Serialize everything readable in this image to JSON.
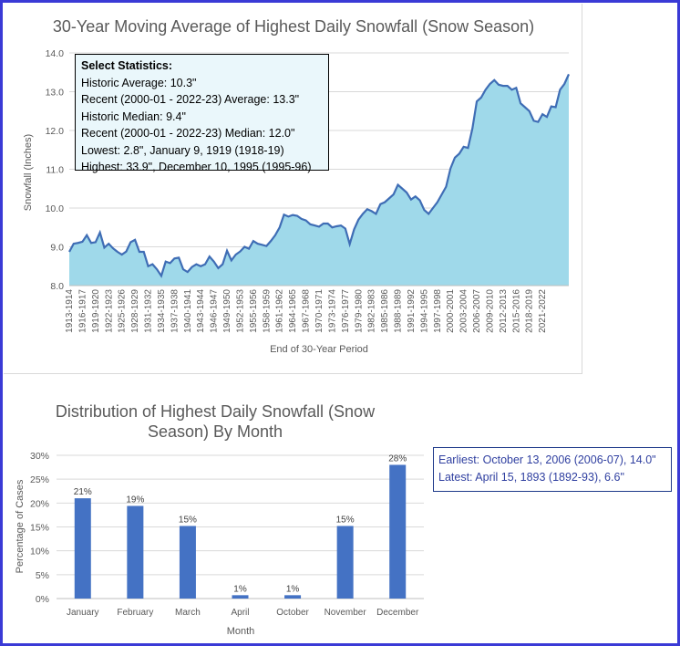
{
  "stats": {
    "header": "Select Statistics:",
    "lines": [
      "Historic Average: 10.3\"",
      "Recent (2000-01 - 2022-23) Average: 13.3\"",
      "Historic Median: 9.4\"",
      "Recent (2000-01 - 2022-23) Median: 12.0\"",
      "Lowest: 2.8\", January 9, 1919 (1918-19)",
      "Highest: 33.9\", December 10, 1995 (1995-96)"
    ]
  },
  "extremes": {
    "earliest": "Earliest: October 13, 2006 (2006-07), 14.0\"",
    "latest": "Latest: April 15, 1893 (1892-93), 6.6\""
  },
  "colors": {
    "area_fill": "#9fd9ea",
    "line": "#3f6db5",
    "bar": "#4472c4",
    "grid": "#d9d9d9",
    "frame": "#3a3ad6"
  },
  "chart_data": [
    {
      "type": "area",
      "title": "30-Year Moving Average of Highest Daily Snowfall (Snow Season)",
      "xlabel": "End of 30-Year Period",
      "ylabel": "Snowfall (Inches)",
      "ylim": [
        8.0,
        14.0
      ],
      "yticks": [
        "8.0",
        "9.0",
        "10.0",
        "11.0",
        "12.0",
        "13.0",
        "14.0"
      ],
      "grid": true,
      "xtick_labels": [
        "1913-1914",
        "1916-1917",
        "1919-1920",
        "1922-1923",
        "1925-1926",
        "1928-1929",
        "1931-1932",
        "1934-1935",
        "1937-1938",
        "1940-1941",
        "1943-1944",
        "1946-1947",
        "1949-1950",
        "1952-1953",
        "1955-1956",
        "1958-1959",
        "1961-1962",
        "1964-1965",
        "1967-1968",
        "1970-1971",
        "1973-1974",
        "1976-1977",
        "1979-1980",
        "1982-1983",
        "1985-1986",
        "1988-1989",
        "1991-1992",
        "1994-1995",
        "1997-1998",
        "2000-2001",
        "2003-2004",
        "2006-2007",
        "2009-2010",
        "2012-2013",
        "2015-2016",
        "2018-2019",
        "2021-2022"
      ],
      "x_start": "1913-1914",
      "x_end": "2022-2023",
      "values": [
        8.87,
        9.08,
        9.1,
        9.13,
        9.3,
        9.1,
        9.12,
        9.37,
        8.98,
        9.08,
        8.96,
        8.87,
        8.8,
        8.88,
        9.12,
        9.18,
        8.87,
        8.87,
        8.5,
        8.55,
        8.42,
        8.25,
        8.62,
        8.58,
        8.7,
        8.72,
        8.42,
        8.35,
        8.48,
        8.55,
        8.5,
        8.55,
        8.75,
        8.62,
        8.45,
        8.55,
        8.9,
        8.65,
        8.8,
        8.88,
        9.0,
        8.95,
        9.15,
        9.08,
        9.05,
        9.02,
        9.15,
        9.3,
        9.5,
        9.83,
        9.78,
        9.82,
        9.8,
        9.72,
        9.68,
        9.58,
        9.55,
        9.52,
        9.6,
        9.6,
        9.5,
        9.53,
        9.55,
        9.47,
        9.07,
        9.45,
        9.7,
        9.85,
        9.97,
        9.92,
        9.85,
        10.1,
        10.15,
        10.25,
        10.35,
        10.6,
        10.5,
        10.4,
        10.22,
        10.3,
        10.2,
        9.95,
        9.85,
        10.0,
        10.15,
        10.35,
        10.55,
        11.02,
        11.3,
        11.4,
        11.58,
        11.55,
        12.05,
        12.75,
        12.85,
        13.05,
        13.2,
        13.3,
        13.18,
        13.15,
        13.15,
        13.05,
        13.1,
        12.7,
        12.6,
        12.5,
        12.25,
        12.22,
        12.42,
        12.35,
        12.62,
        12.6,
        13.05,
        13.2,
        13.45
      ]
    },
    {
      "type": "bar",
      "title": "Distribution of Highest Daily Snowfall (Snow Season) By Month",
      "title_lines": [
        "Distribution of Highest Daily Snowfall (Snow",
        "Season) By Month"
      ],
      "xlabel": "Month",
      "ylabel": "Percentage of Cases",
      "ylim": [
        0,
        30
      ],
      "yticks": [
        "0%",
        "5%",
        "10%",
        "15%",
        "20%",
        "25%",
        "30%"
      ],
      "grid": true,
      "categories": [
        "January",
        "February",
        "March",
        "April",
        "October",
        "November",
        "December"
      ],
      "values": [
        21,
        19.4,
        15.2,
        0.7,
        0.7,
        15.2,
        28
      ],
      "data_labels": [
        "21%",
        "19%",
        "15%",
        "1%",
        "1%",
        "15%",
        "28%"
      ]
    }
  ]
}
